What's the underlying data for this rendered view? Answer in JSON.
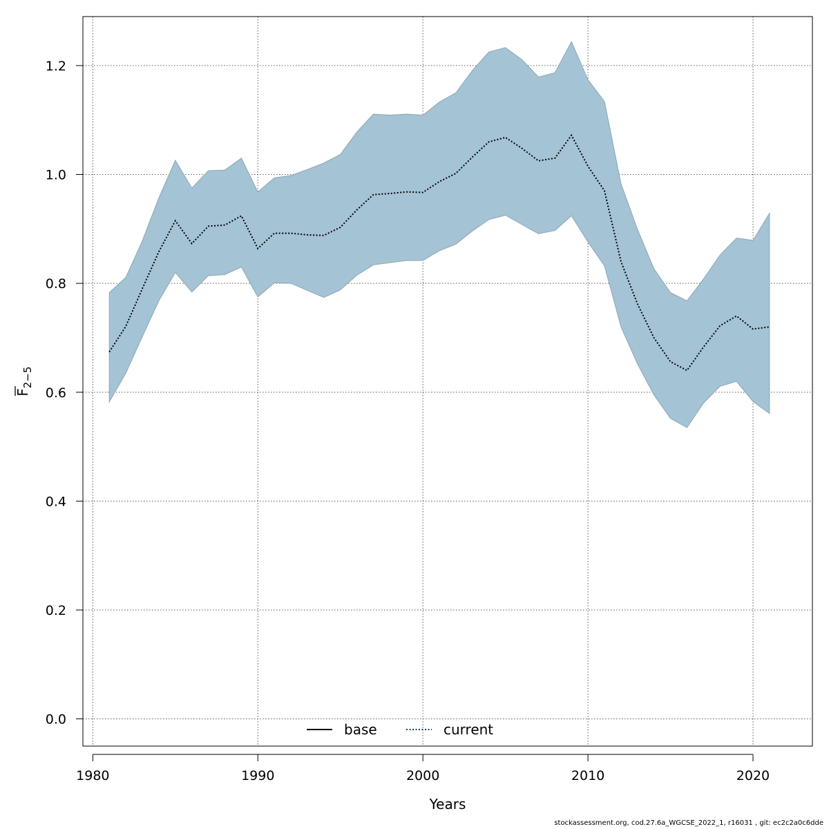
{
  "chart_data": {
    "type": "line",
    "title": "",
    "xlabel": "Years",
    "ylabel_main": "F",
    "ylabel_sub": "2−5",
    "xlim": [
      1979.4,
      2023.6
    ],
    "ylim": [
      -0.05,
      1.29
    ],
    "x_ticks": [
      1980,
      1990,
      2000,
      2010,
      2020
    ],
    "y_ticks": [
      0.0,
      0.2,
      0.4,
      0.6,
      0.8,
      1.0,
      1.2
    ],
    "y_tick_labels": [
      "0.0",
      "0.2",
      "0.4",
      "0.6",
      "0.8",
      "1.0",
      "1.2"
    ],
    "grid": true,
    "legend_position": "bottom-center",
    "legend": [
      {
        "label": "base",
        "style": "solid",
        "color": "#000000"
      },
      {
        "label": "current",
        "style": "dotted",
        "color": "#00415f"
      }
    ],
    "band_color": "#a4c3d5",
    "band_edge_color": "#8ea6b4",
    "x": [
      1981,
      1982,
      1983,
      1984,
      1985,
      1986,
      1987,
      1988,
      1989,
      1990,
      1991,
      1992,
      1993,
      1994,
      1995,
      1996,
      1997,
      1998,
      1999,
      2000,
      2001,
      2002,
      2003,
      2004,
      2005,
      2006,
      2007,
      2008,
      2009,
      2010,
      2011,
      2012,
      2013,
      2014,
      2015,
      2016,
      2017,
      2018,
      2019,
      2020,
      2021
    ],
    "series": [
      {
        "name": "current",
        "values": [
          0.674,
          0.721,
          0.79,
          0.858,
          0.915,
          0.873,
          0.905,
          0.907,
          0.924,
          0.864,
          0.892,
          0.892,
          0.889,
          0.888,
          0.903,
          0.935,
          0.963,
          0.965,
          0.968,
          0.967,
          0.987,
          1.002,
          1.032,
          1.06,
          1.068,
          1.048,
          1.025,
          1.03,
          1.072,
          1.015,
          0.97,
          0.84,
          0.762,
          0.7,
          0.656,
          0.64,
          0.683,
          0.722,
          0.74,
          0.716,
          0.72
        ]
      }
    ],
    "lower": [
      0.582,
      0.635,
      0.702,
      0.768,
      0.82,
      0.784,
      0.814,
      0.816,
      0.83,
      0.775,
      0.801,
      0.8,
      0.787,
      0.774,
      0.788,
      0.815,
      0.834,
      0.838,
      0.842,
      0.842,
      0.86,
      0.872,
      0.896,
      0.917,
      0.925,
      0.908,
      0.891,
      0.897,
      0.924,
      0.876,
      0.832,
      0.72,
      0.652,
      0.595,
      0.552,
      0.535,
      0.58,
      0.611,
      0.62,
      0.583,
      0.561
    ],
    "upper": [
      0.783,
      0.811,
      0.878,
      0.957,
      1.026,
      0.975,
      1.007,
      1.008,
      1.03,
      0.968,
      0.994,
      0.998,
      1.009,
      1.021,
      1.037,
      1.078,
      1.111,
      1.109,
      1.111,
      1.109,
      1.133,
      1.15,
      1.191,
      1.225,
      1.233,
      1.211,
      1.179,
      1.187,
      1.244,
      1.174,
      1.134,
      0.983,
      0.899,
      0.827,
      0.783,
      0.768,
      0.808,
      0.852,
      0.883,
      0.879,
      0.929
    ]
  },
  "footer": "stockassessment.org, cod.27.6a_WGCSE_2022_1, r16031 , git: ec2c2a0c6dde"
}
